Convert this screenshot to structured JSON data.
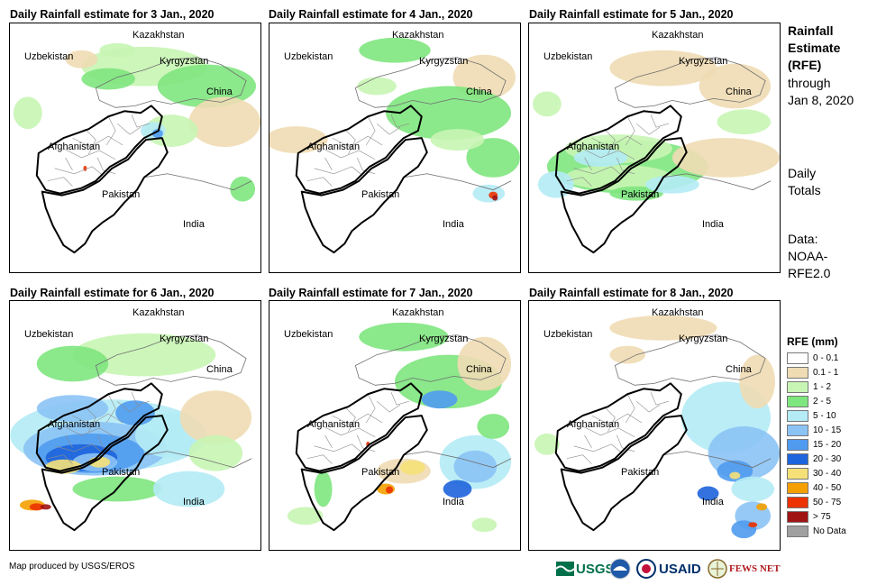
{
  "panels": [
    {
      "title": "Daily Rainfall estimate for 3 Jan., 2020",
      "pattern": "d3"
    },
    {
      "title": "Daily Rainfall estimate for 4 Jan., 2020",
      "pattern": "d4"
    },
    {
      "title": "Daily Rainfall estimate for 5 Jan., 2020",
      "pattern": "d5"
    },
    {
      "title": "Daily Rainfall estimate for 6 Jan., 2020",
      "pattern": "d6"
    },
    {
      "title": "Daily Rainfall estimate for 7 Jan., 2020",
      "pattern": "d7"
    },
    {
      "title": "Daily Rainfall estimate for 8 Jan., 2020",
      "pattern": "d8"
    }
  ],
  "map_labels": {
    "kazakhstan": "Kazakhstan",
    "uzbekistan": "Uzbekistan",
    "kyrgyzstan": "Kyrgyzstan",
    "china": "China",
    "afghanistan": "Afghanistan",
    "pakistan": "Pakistan",
    "india": "India"
  },
  "sidebar": {
    "heading_lines": [
      "Rainfall",
      "Estimate",
      "(RFE)"
    ],
    "through_lines": [
      "through",
      "Jan 8, 2020"
    ],
    "daily_lines": [
      "Daily",
      "Totals"
    ],
    "data_lines": [
      "Data:",
      "NOAA-",
      "RFE2.0"
    ]
  },
  "legend": {
    "title": "RFE (mm)",
    "items": [
      {
        "label": "0 - 0.1",
        "color": "#ffffff"
      },
      {
        "label": "0.1 - 1",
        "color": "#efdcb4"
      },
      {
        "label": "1 - 2",
        "color": "#c8f5b4"
      },
      {
        "label": "2 - 5",
        "color": "#7ee67e"
      },
      {
        "label": "5 - 10",
        "color": "#b4ebf5"
      },
      {
        "label": "10 - 15",
        "color": "#8cc3f5"
      },
      {
        "label": "15 - 20",
        "color": "#509bf0"
      },
      {
        "label": "20 - 30",
        "color": "#1e64dc"
      },
      {
        "label": "30 - 40",
        "color": "#f5e178"
      },
      {
        "label": "40 - 50",
        "color": "#f5a000"
      },
      {
        "label": "50 - 75",
        "color": "#eb3200"
      },
      {
        "label": "> 75",
        "color": "#a01414"
      },
      {
        "label": "No Data",
        "color": "#a0a0a0"
      }
    ]
  },
  "footer": {
    "credit": "Map produced by USGS/EROS"
  },
  "logos": {
    "usgs": "USGS",
    "noaa": "NOAA",
    "usaid": "USAID",
    "fewsnet": "FEWS NET"
  },
  "colors": {
    "border": "#000000",
    "province": "#8c8c8c",
    "country": "#6e6e6e"
  }
}
